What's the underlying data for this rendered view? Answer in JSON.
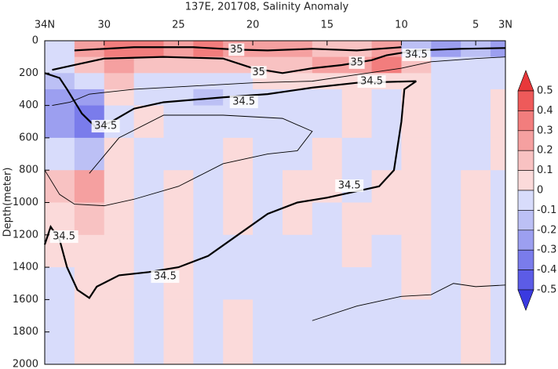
{
  "chart_data": {
    "type": "heatmap",
    "title": "137E, 201708, Salinity Anomaly",
    "y_label": "Depth(meter)",
    "xlim": [
      34,
      3
    ],
    "xticks": [
      {
        "value": 34,
        "label": "34N"
      },
      30,
      25,
      20,
      15,
      10,
      5,
      {
        "value": 3,
        "label": "3N"
      }
    ],
    "ylim": [
      0,
      2000
    ],
    "yticks": [
      0,
      200,
      400,
      600,
      800,
      1000,
      1200,
      1400,
      1600,
      1800,
      2000
    ],
    "x_edges": [
      34,
      32,
      30,
      28,
      26,
      24,
      22,
      20,
      18,
      16,
      14,
      12,
      10,
      8,
      6,
      4,
      3
    ],
    "y_edges": [
      0,
      100,
      200,
      300,
      400,
      600,
      800,
      1000,
      1200,
      1400,
      1600,
      1800,
      2000
    ],
    "values": [
      [
        -0.1,
        0.2,
        0.3,
        0.3,
        0.2,
        0.3,
        0.2,
        0.2,
        0.2,
        0.1,
        0.1,
        0.2,
        -0.2,
        -0.3,
        -0.2,
        -0.3
      ],
      [
        -0.1,
        0.1,
        0.2,
        0.1,
        0.1,
        0.1,
        0.1,
        0.1,
        0.1,
        0.2,
        0.2,
        0.3,
        0.1,
        -0.1,
        -0.1,
        -0.1
      ],
      [
        -0.2,
        -0.1,
        0.1,
        -0.05,
        -0.05,
        -0.05,
        -0.05,
        0.05,
        0.05,
        0.05,
        0.05,
        0.05,
        0.05,
        -0.05,
        -0.05,
        -0.05
      ],
      [
        -0.3,
        -0.3,
        0.05,
        -0.05,
        -0.05,
        -0.2,
        -0.1,
        -0.05,
        -0.05,
        -0.05,
        0.05,
        -0.05,
        0.05,
        -0.05,
        -0.05,
        0.05
      ],
      [
        -0.3,
        -0.4,
        -0.1,
        0.05,
        -0.05,
        -0.1,
        -0.05,
        -0.05,
        -0.05,
        -0.05,
        0.05,
        -0.05,
        0.05,
        -0.05,
        -0.05,
        0.05
      ],
      [
        -0.1,
        -0.2,
        0.05,
        -0.05,
        -0.05,
        -0.05,
        0.05,
        -0.05,
        -0.05,
        0.05,
        -0.05,
        -0.05,
        0.05,
        -0.05,
        -0.05,
        0.05
      ],
      [
        0.1,
        0.2,
        0.05,
        -0.05,
        0.05,
        -0.05,
        0.05,
        -0.05,
        0.05,
        0.05,
        -0.05,
        0.05,
        0.05,
        -0.05,
        0.05,
        -0.05
      ],
      [
        0.05,
        0.1,
        0.05,
        -0.05,
        0.05,
        -0.05,
        0.05,
        -0.05,
        0.05,
        -0.05,
        0.05,
        0.05,
        0.05,
        -0.05,
        0.05,
        -0.05
      ],
      [
        0.05,
        0.05,
        0.05,
        -0.05,
        0.05,
        -0.05,
        -0.05,
        -0.05,
        -0.05,
        -0.05,
        0.05,
        -0.05,
        0.05,
        -0.05,
        0.05,
        -0.05
      ],
      [
        -0.05,
        0.05,
        0.05,
        -0.05,
        0.05,
        -0.05,
        -0.05,
        -0.05,
        -0.05,
        -0.05,
        -0.05,
        -0.05,
        0.05,
        -0.05,
        0.05,
        -0.05
      ],
      [
        -0.05,
        0.05,
        0.05,
        -0.05,
        0.05,
        -0.05,
        0.05,
        -0.05,
        -0.05,
        -0.05,
        -0.05,
        -0.05,
        -0.05,
        -0.05,
        0.05,
        -0.05
      ],
      [
        -0.05,
        0.05,
        0.05,
        -0.05,
        0.05,
        -0.05,
        0.05,
        -0.05,
        -0.05,
        -0.05,
        -0.05,
        -0.05,
        -0.05,
        -0.05,
        0.05,
        -0.05
      ]
    ],
    "colorbar_ticks": [
      0.5,
      0.4,
      0.3,
      0.2,
      0.1,
      0,
      -0.1,
      -0.2,
      -0.3,
      -0.4,
      -0.5
    ],
    "colors": [
      "#e8383a",
      "#ee5a5a",
      "#f27d7d",
      "#f5a0a0",
      "#f8c2c2",
      "#fbdada",
      "#d8dcfb",
      "#bcc0f5",
      "#9c9ff0",
      "#7a7ceb",
      "#5c5ce6",
      "#3a3ae0"
    ],
    "contours": [
      {
        "style": "thick",
        "points": [
          [
            34,
            1260
          ],
          [
            33.6,
            1150
          ],
          [
            33,
            1230
          ],
          [
            32.5,
            1400
          ],
          [
            31.8,
            1540
          ],
          [
            31,
            1590
          ],
          [
            30.5,
            1520
          ],
          [
            29,
            1450
          ],
          [
            27,
            1430
          ],
          [
            25,
            1400
          ],
          [
            23,
            1330
          ],
          [
            21,
            1200
          ],
          [
            19,
            1070
          ],
          [
            17,
            1000
          ],
          [
            15,
            970
          ],
          [
            13,
            930
          ],
          [
            11.5,
            900
          ],
          [
            10.5,
            800
          ],
          [
            10,
            500
          ],
          [
            9.8,
            300
          ],
          [
            9,
            250
          ]
        ]
      },
      {
        "style": "thick",
        "points": [
          [
            9,
            250
          ],
          [
            11,
            255
          ],
          [
            13,
            260
          ],
          [
            16,
            290
          ],
          [
            19,
            330
          ],
          [
            22,
            350
          ],
          [
            26,
            380
          ],
          [
            28,
            420
          ],
          [
            29.5,
            500
          ],
          [
            30.5,
            540
          ],
          [
            31.5,
            450
          ],
          [
            32.5,
            300
          ],
          [
            33,
            230
          ],
          [
            34,
            200
          ]
        ]
      },
      {
        "style": "thick",
        "points": [
          [
            33.5,
            180
          ],
          [
            32,
            150
          ],
          [
            30,
            110
          ],
          [
            26,
            100
          ],
          [
            22,
            110
          ],
          [
            20,
            170
          ],
          [
            18,
            200
          ],
          [
            16,
            170
          ],
          [
            14,
            150
          ],
          [
            12,
            120
          ],
          [
            11,
            90
          ],
          [
            9,
            60
          ],
          [
            6,
            50
          ],
          [
            3,
            45
          ]
        ]
      },
      {
        "style": "thick",
        "points": [
          [
            32,
            60
          ],
          [
            28,
            40
          ],
          [
            24,
            40
          ],
          [
            21,
            55
          ],
          [
            19,
            60
          ],
          [
            16,
            50
          ],
          [
            13,
            60
          ],
          [
            10,
            40
          ]
        ]
      },
      {
        "style": "thin",
        "points": [
          [
            16,
            1730
          ],
          [
            13,
            1640
          ],
          [
            10,
            1580
          ],
          [
            8,
            1570
          ],
          [
            6.5,
            1500
          ],
          [
            5,
            1520
          ],
          [
            3,
            1510
          ]
        ]
      },
      {
        "style": "thin",
        "points": [
          [
            34,
            800
          ],
          [
            33,
            950
          ],
          [
            32,
            1010
          ],
          [
            30,
            1020
          ],
          [
            28,
            980
          ],
          [
            25,
            900
          ],
          [
            22,
            760
          ],
          [
            19,
            700
          ],
          [
            17,
            680
          ],
          [
            16,
            560
          ],
          [
            18,
            480
          ],
          [
            22,
            460
          ],
          [
            26,
            460
          ],
          [
            29,
            600
          ],
          [
            31,
            820
          ]
        ]
      },
      {
        "style": "thin",
        "points": [
          [
            33.5,
            400
          ],
          [
            32.3,
            380
          ],
          [
            31,
            330
          ],
          [
            28,
            300
          ],
          [
            24,
            280
          ],
          [
            20,
            260
          ],
          [
            16,
            250
          ],
          [
            13,
            210
          ],
          [
            10,
            170
          ],
          [
            8,
            130
          ],
          [
            5,
            110
          ],
          [
            3,
            100
          ]
        ]
      }
    ],
    "contour_labels": [
      {
        "text": "35",
        "x": 21.1,
        "y": 55
      },
      {
        "text": "35",
        "x": 13,
        "y": 135
      },
      {
        "text": "35",
        "x": 19.6,
        "y": 195
      },
      {
        "text": "34.5",
        "x": 9,
        "y": 87
      },
      {
        "text": "34.5",
        "x": 12,
        "y": 252
      },
      {
        "text": "34.5",
        "x": 20.6,
        "y": 378
      },
      {
        "text": "34.5",
        "x": 29.9,
        "y": 528
      },
      {
        "text": "34.5",
        "x": 13.5,
        "y": 896
      },
      {
        "text": "34.5",
        "x": 32.7,
        "y": 1211
      },
      {
        "text": "34.5",
        "x": 25.9,
        "y": 1458
      }
    ]
  }
}
